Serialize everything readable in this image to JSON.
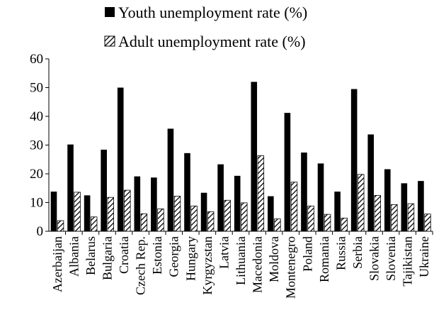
{
  "chart_data": {
    "type": "bar",
    "categories": [
      "Azerbaijan",
      "Albania",
      "Belarus",
      "Bulgaria",
      "Croatia",
      "Czech Rep.",
      "Estonia",
      "Georgia",
      "Hungary",
      "Kyrgyzstan",
      "Latvia",
      "Lithuania",
      "Macedonia",
      "Moldova",
      "Montenegro",
      "Poland",
      "Romania",
      "Russia",
      "Serbia",
      "Slovakia",
      "Slovenia",
      "Tajikistan",
      "Ukraine"
    ],
    "series": [
      {
        "name": "Youth unemployment rate (%)",
        "pattern": "solid",
        "color": "#000000",
        "values": [
          13.8,
          30.2,
          12.5,
          28.4,
          50.0,
          19.1,
          18.7,
          35.7,
          27.2,
          13.4,
          23.3,
          19.3,
          52.0,
          12.2,
          41.2,
          27.4,
          23.6,
          13.8,
          49.5,
          33.7,
          21.6,
          16.7,
          17.5
        ]
      },
      {
        "name": "Adult unemployment rate (%)",
        "pattern": "diagonal-hatch",
        "color": "#000000",
        "values": [
          3.7,
          13.6,
          5.0,
          11.8,
          14.3,
          6.1,
          7.8,
          12.2,
          8.8,
          6.8,
          10.8,
          9.9,
          26.3,
          4.3,
          17.1,
          8.8,
          5.9,
          4.6,
          19.8,
          12.5,
          9.3,
          9.6,
          6.0
        ]
      }
    ],
    "title": "",
    "xlabel": "",
    "ylabel": "",
    "ylim": [
      0,
      60
    ],
    "yticks": [
      0,
      10,
      20,
      30,
      40,
      50,
      60
    ],
    "grid": false,
    "legend_position": "top-center"
  }
}
